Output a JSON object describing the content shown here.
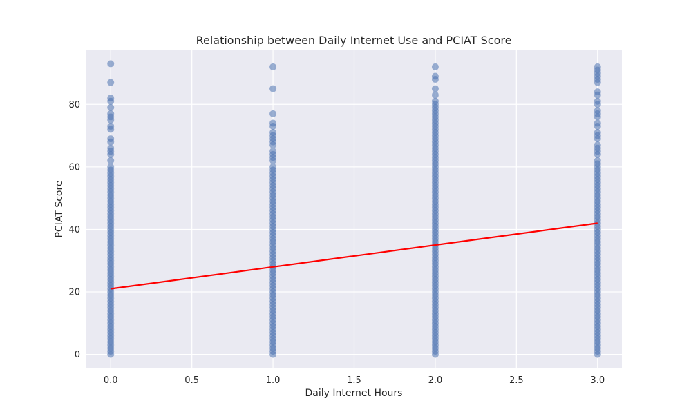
{
  "chart_data": {
    "type": "scatter",
    "title": "Relationship between Daily Internet Use and PCIAT Score",
    "xlabel": "Daily Internet Hours",
    "ylabel": "PCIAT Score",
    "xlim": [
      -0.15,
      3.15
    ],
    "ylim": [
      -4.5,
      97.5
    ],
    "xticks": [
      0.0,
      0.5,
      1.0,
      1.5,
      2.0,
      2.5,
      3.0
    ],
    "xtick_labels": [
      "0.0",
      "0.5",
      "1.0",
      "1.5",
      "2.0",
      "2.5",
      "3.0"
    ],
    "yticks": [
      0,
      20,
      40,
      60,
      80
    ],
    "ytick_labels": [
      "0",
      "20",
      "40",
      "60",
      "80"
    ],
    "grid": true,
    "series": [
      {
        "type": "scatter",
        "color": "#4c72b0",
        "points": [
          [
            0,
            93
          ],
          [
            0,
            87
          ],
          [
            0,
            82
          ],
          [
            0,
            81
          ],
          [
            0,
            79
          ],
          [
            0,
            77
          ],
          [
            0,
            76
          ],
          [
            0,
            75
          ],
          [
            0,
            73
          ],
          [
            0,
            72
          ],
          [
            0,
            69
          ],
          [
            0,
            68
          ],
          [
            0,
            66
          ],
          [
            0,
            65
          ],
          [
            0,
            64
          ],
          [
            0,
            62
          ],
          [
            0,
            60
          ],
          [
            0,
            59
          ],
          [
            0,
            58
          ],
          [
            0,
            57
          ],
          [
            0,
            56
          ],
          [
            0,
            55
          ],
          [
            0,
            54
          ],
          [
            0,
            53
          ],
          [
            0,
            52
          ],
          [
            0,
            51
          ],
          [
            0,
            50
          ],
          [
            0,
            49
          ],
          [
            0,
            48
          ],
          [
            0,
            47
          ],
          [
            0,
            46
          ],
          [
            0,
            45
          ],
          [
            0,
            44
          ],
          [
            0,
            43
          ],
          [
            0,
            42
          ],
          [
            0,
            41
          ],
          [
            0,
            40
          ],
          [
            0,
            39
          ],
          [
            0,
            38
          ],
          [
            0,
            37
          ],
          [
            0,
            36
          ],
          [
            0,
            35
          ],
          [
            0,
            34
          ],
          [
            0,
            33
          ],
          [
            0,
            32
          ],
          [
            0,
            31
          ],
          [
            0,
            30
          ],
          [
            0,
            29
          ],
          [
            0,
            28
          ],
          [
            0,
            27
          ],
          [
            0,
            26
          ],
          [
            0,
            25
          ],
          [
            0,
            24
          ],
          [
            0,
            23
          ],
          [
            0,
            22
          ],
          [
            0,
            21
          ],
          [
            0,
            20
          ],
          [
            0,
            19
          ],
          [
            0,
            18
          ],
          [
            0,
            17
          ],
          [
            0,
            16
          ],
          [
            0,
            15
          ],
          [
            0,
            14
          ],
          [
            0,
            13
          ],
          [
            0,
            12
          ],
          [
            0,
            11
          ],
          [
            0,
            10
          ],
          [
            0,
            9
          ],
          [
            0,
            8
          ],
          [
            0,
            7
          ],
          [
            0,
            6
          ],
          [
            0,
            5
          ],
          [
            0,
            4
          ],
          [
            0,
            3
          ],
          [
            0,
            2
          ],
          [
            0,
            1
          ],
          [
            0,
            0
          ],
          [
            1,
            92
          ],
          [
            1,
            85
          ],
          [
            1,
            77
          ],
          [
            1,
            74
          ],
          [
            1,
            73
          ],
          [
            1,
            71
          ],
          [
            1,
            70
          ],
          [
            1,
            69
          ],
          [
            1,
            68
          ],
          [
            1,
            67
          ],
          [
            1,
            65
          ],
          [
            1,
            64
          ],
          [
            1,
            63
          ],
          [
            1,
            62
          ],
          [
            1,
            60
          ],
          [
            1,
            59
          ],
          [
            1,
            58
          ],
          [
            1,
            57
          ],
          [
            1,
            56
          ],
          [
            1,
            55
          ],
          [
            1,
            54
          ],
          [
            1,
            53
          ],
          [
            1,
            52
          ],
          [
            1,
            51
          ],
          [
            1,
            50
          ],
          [
            1,
            49
          ],
          [
            1,
            48
          ],
          [
            1,
            47
          ],
          [
            1,
            46
          ],
          [
            1,
            45
          ],
          [
            1,
            44
          ],
          [
            1,
            43
          ],
          [
            1,
            42
          ],
          [
            1,
            41
          ],
          [
            1,
            40
          ],
          [
            1,
            39
          ],
          [
            1,
            38
          ],
          [
            1,
            37
          ],
          [
            1,
            36
          ],
          [
            1,
            35
          ],
          [
            1,
            34
          ],
          [
            1,
            33
          ],
          [
            1,
            32
          ],
          [
            1,
            31
          ],
          [
            1,
            30
          ],
          [
            1,
            29
          ],
          [
            1,
            28
          ],
          [
            1,
            27
          ],
          [
            1,
            26
          ],
          [
            1,
            25
          ],
          [
            1,
            24
          ],
          [
            1,
            23
          ],
          [
            1,
            22
          ],
          [
            1,
            21
          ],
          [
            1,
            20
          ],
          [
            1,
            19
          ],
          [
            1,
            18
          ],
          [
            1,
            17
          ],
          [
            1,
            16
          ],
          [
            1,
            15
          ],
          [
            1,
            14
          ],
          [
            1,
            13
          ],
          [
            1,
            12
          ],
          [
            1,
            11
          ],
          [
            1,
            10
          ],
          [
            1,
            9
          ],
          [
            1,
            8
          ],
          [
            1,
            7
          ],
          [
            1,
            6
          ],
          [
            1,
            5
          ],
          [
            1,
            4
          ],
          [
            1,
            3
          ],
          [
            1,
            2
          ],
          [
            1,
            1
          ],
          [
            1,
            0
          ],
          [
            2,
            92
          ],
          [
            2,
            89
          ],
          [
            2,
            88
          ],
          [
            2,
            85
          ],
          [
            2,
            83
          ],
          [
            2,
            81
          ],
          [
            2,
            80
          ],
          [
            2,
            79
          ],
          [
            2,
            78
          ],
          [
            2,
            77
          ],
          [
            2,
            76
          ],
          [
            2,
            75
          ],
          [
            2,
            74
          ],
          [
            2,
            73
          ],
          [
            2,
            72
          ],
          [
            2,
            71
          ],
          [
            2,
            70
          ],
          [
            2,
            69
          ],
          [
            2,
            68
          ],
          [
            2,
            67
          ],
          [
            2,
            66
          ],
          [
            2,
            65
          ],
          [
            2,
            64
          ],
          [
            2,
            63
          ],
          [
            2,
            62
          ],
          [
            2,
            61
          ],
          [
            2,
            60
          ],
          [
            2,
            59
          ],
          [
            2,
            58
          ],
          [
            2,
            57
          ],
          [
            2,
            56
          ],
          [
            2,
            55
          ],
          [
            2,
            54
          ],
          [
            2,
            53
          ],
          [
            2,
            52
          ],
          [
            2,
            51
          ],
          [
            2,
            50
          ],
          [
            2,
            49
          ],
          [
            2,
            48
          ],
          [
            2,
            47
          ],
          [
            2,
            46
          ],
          [
            2,
            45
          ],
          [
            2,
            44
          ],
          [
            2,
            43
          ],
          [
            2,
            42
          ],
          [
            2,
            41
          ],
          [
            2,
            40
          ],
          [
            2,
            39
          ],
          [
            2,
            38
          ],
          [
            2,
            37
          ],
          [
            2,
            36
          ],
          [
            2,
            35
          ],
          [
            2,
            34
          ],
          [
            2,
            33
          ],
          [
            2,
            32
          ],
          [
            2,
            31
          ],
          [
            2,
            30
          ],
          [
            2,
            29
          ],
          [
            2,
            28
          ],
          [
            2,
            27
          ],
          [
            2,
            26
          ],
          [
            2,
            25
          ],
          [
            2,
            24
          ],
          [
            2,
            23
          ],
          [
            2,
            22
          ],
          [
            2,
            21
          ],
          [
            2,
            20
          ],
          [
            2,
            19
          ],
          [
            2,
            18
          ],
          [
            2,
            17
          ],
          [
            2,
            16
          ],
          [
            2,
            15
          ],
          [
            2,
            14
          ],
          [
            2,
            13
          ],
          [
            2,
            12
          ],
          [
            2,
            11
          ],
          [
            2,
            10
          ],
          [
            2,
            9
          ],
          [
            2,
            8
          ],
          [
            2,
            7
          ],
          [
            2,
            6
          ],
          [
            2,
            5
          ],
          [
            2,
            4
          ],
          [
            2,
            3
          ],
          [
            2,
            2
          ],
          [
            2,
            1
          ],
          [
            2,
            0
          ],
          [
            3,
            92
          ],
          [
            3,
            91
          ],
          [
            3,
            90
          ],
          [
            3,
            89
          ],
          [
            3,
            88
          ],
          [
            3,
            87
          ],
          [
            3,
            84
          ],
          [
            3,
            83
          ],
          [
            3,
            81
          ],
          [
            3,
            80
          ],
          [
            3,
            78
          ],
          [
            3,
            77
          ],
          [
            3,
            76
          ],
          [
            3,
            74
          ],
          [
            3,
            73
          ],
          [
            3,
            71
          ],
          [
            3,
            70
          ],
          [
            3,
            69
          ],
          [
            3,
            67
          ],
          [
            3,
            66
          ],
          [
            3,
            65
          ],
          [
            3,
            64
          ],
          [
            3,
            62
          ],
          [
            3,
            61
          ],
          [
            3,
            60
          ],
          [
            3,
            59
          ],
          [
            3,
            58
          ],
          [
            3,
            57
          ],
          [
            3,
            56
          ],
          [
            3,
            55
          ],
          [
            3,
            54
          ],
          [
            3,
            53
          ],
          [
            3,
            52
          ],
          [
            3,
            51
          ],
          [
            3,
            50
          ],
          [
            3,
            49
          ],
          [
            3,
            48
          ],
          [
            3,
            47
          ],
          [
            3,
            46
          ],
          [
            3,
            45
          ],
          [
            3,
            44
          ],
          [
            3,
            43
          ],
          [
            3,
            42
          ],
          [
            3,
            41
          ],
          [
            3,
            40
          ],
          [
            3,
            39
          ],
          [
            3,
            38
          ],
          [
            3,
            37
          ],
          [
            3,
            36
          ],
          [
            3,
            35
          ],
          [
            3,
            34
          ],
          [
            3,
            33
          ],
          [
            3,
            32
          ],
          [
            3,
            31
          ],
          [
            3,
            30
          ],
          [
            3,
            29
          ],
          [
            3,
            28
          ],
          [
            3,
            27
          ],
          [
            3,
            26
          ],
          [
            3,
            25
          ],
          [
            3,
            24
          ],
          [
            3,
            23
          ],
          [
            3,
            22
          ],
          [
            3,
            21
          ],
          [
            3,
            20
          ],
          [
            3,
            19
          ],
          [
            3,
            18
          ],
          [
            3,
            17
          ],
          [
            3,
            16
          ],
          [
            3,
            15
          ],
          [
            3,
            14
          ],
          [
            3,
            13
          ],
          [
            3,
            12
          ],
          [
            3,
            11
          ],
          [
            3,
            10
          ],
          [
            3,
            9
          ],
          [
            3,
            8
          ],
          [
            3,
            7
          ],
          [
            3,
            6
          ],
          [
            3,
            5
          ],
          [
            3,
            4
          ],
          [
            3,
            3
          ],
          [
            3,
            2
          ],
          [
            3,
            1
          ],
          [
            3,
            0
          ]
        ]
      },
      {
        "type": "line",
        "color": "#ff0000",
        "x": [
          0,
          3
        ],
        "y": [
          21,
          42
        ]
      }
    ]
  },
  "colors": {
    "plot_background": "#eaeaf2",
    "grid": "#ffffff",
    "points": "#4c72b0",
    "fit_line": "#ff0000"
  }
}
